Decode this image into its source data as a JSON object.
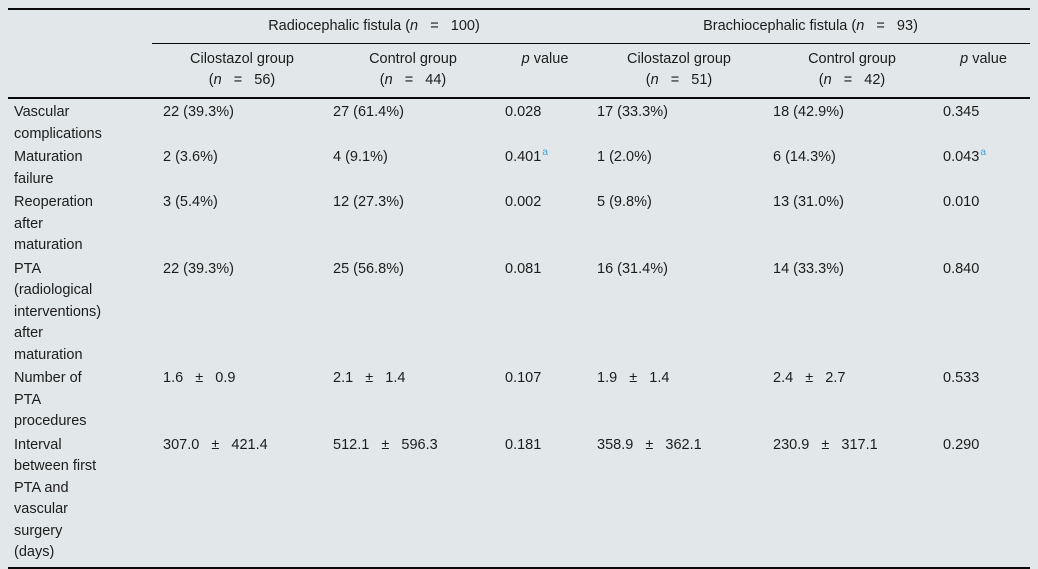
{
  "colors": {
    "table_background": "#e2e8ea",
    "rule_color": "#0a0a0a",
    "footnote_marker_color": "#3fa2d9",
    "text_color": "#1c1c1c"
  },
  "table": {
    "groups": [
      {
        "pre": "Radiocephalic fistula (",
        "n": "n",
        "post": "   =   100)"
      },
      {
        "pre": "Brachiocephalic fistula (",
        "n": "n",
        "post": "   =   93)"
      }
    ],
    "columns": [
      {
        "title": "Cilostazol group",
        "n_pre": "(",
        "n": "n",
        "n_post": "   =   56)"
      },
      {
        "title": "Control group",
        "n_pre": "(",
        "n": "n",
        "n_post": "   =   44)"
      },
      {
        "italic": "p",
        "rest": " value"
      },
      {
        "title": "Cilostazol group",
        "n_pre": "(",
        "n": "n",
        "n_post": "   =   51)"
      },
      {
        "title": "Control group",
        "n_pre": "(",
        "n": "n",
        "n_post": "   =   42)"
      },
      {
        "italic": "p",
        "rest": " value"
      }
    ],
    "rows": [
      {
        "label": "Vascular\ncomplications",
        "c1": "22 (39.3%)",
        "c2": "27 (61.4%)",
        "p1": "0.028",
        "c3": "17 (33.3%)",
        "c4": "18 (42.9%)",
        "p2": "0.345"
      },
      {
        "label": "Maturation\nfailure",
        "c1": "2 (3.6%)",
        "c2": "4 (9.1%)",
        "p1": "0.401",
        "p1_sup": "a",
        "c3": "1 (2.0%)",
        "c4": "6 (14.3%)",
        "p2": "0.043",
        "p2_sup": "a"
      },
      {
        "label": "Reoperation\nafter\nmaturation",
        "c1": "3 (5.4%)",
        "c2": "12 (27.3%)",
        "p1": "0.002",
        "c3": "5 (9.8%)",
        "c4": "13 (31.0%)",
        "p2": "0.010"
      },
      {
        "label": "PTA\n(radiological\ninterventions)\nafter\nmaturation",
        "c1": "22 (39.3%)",
        "c2": "25 (56.8%)",
        "p1": "0.081",
        "c3": "16 (31.4%)",
        "c4": "14 (33.3%)",
        "p2": "0.840"
      },
      {
        "label": "Number of\nPTA\nprocedures",
        "c1": "1.6   ±   0.9",
        "c2": "2.1   ±   1.4",
        "p1": "0.107",
        "c3": "1.9   ±   1.4",
        "c4": "2.4   ±   2.7",
        "p2": "0.533"
      },
      {
        "label": "Interval\nbetween first\nPTA and\nvascular\nsurgery\n(days)",
        "c1": "307.0   ±   421.4",
        "c2": "512.1   ±   596.3",
        "p1": "0.181",
        "c3": "358.9   ±   362.1",
        "c4": "230.9   ±   317.1",
        "p2": "0.290"
      }
    ]
  }
}
